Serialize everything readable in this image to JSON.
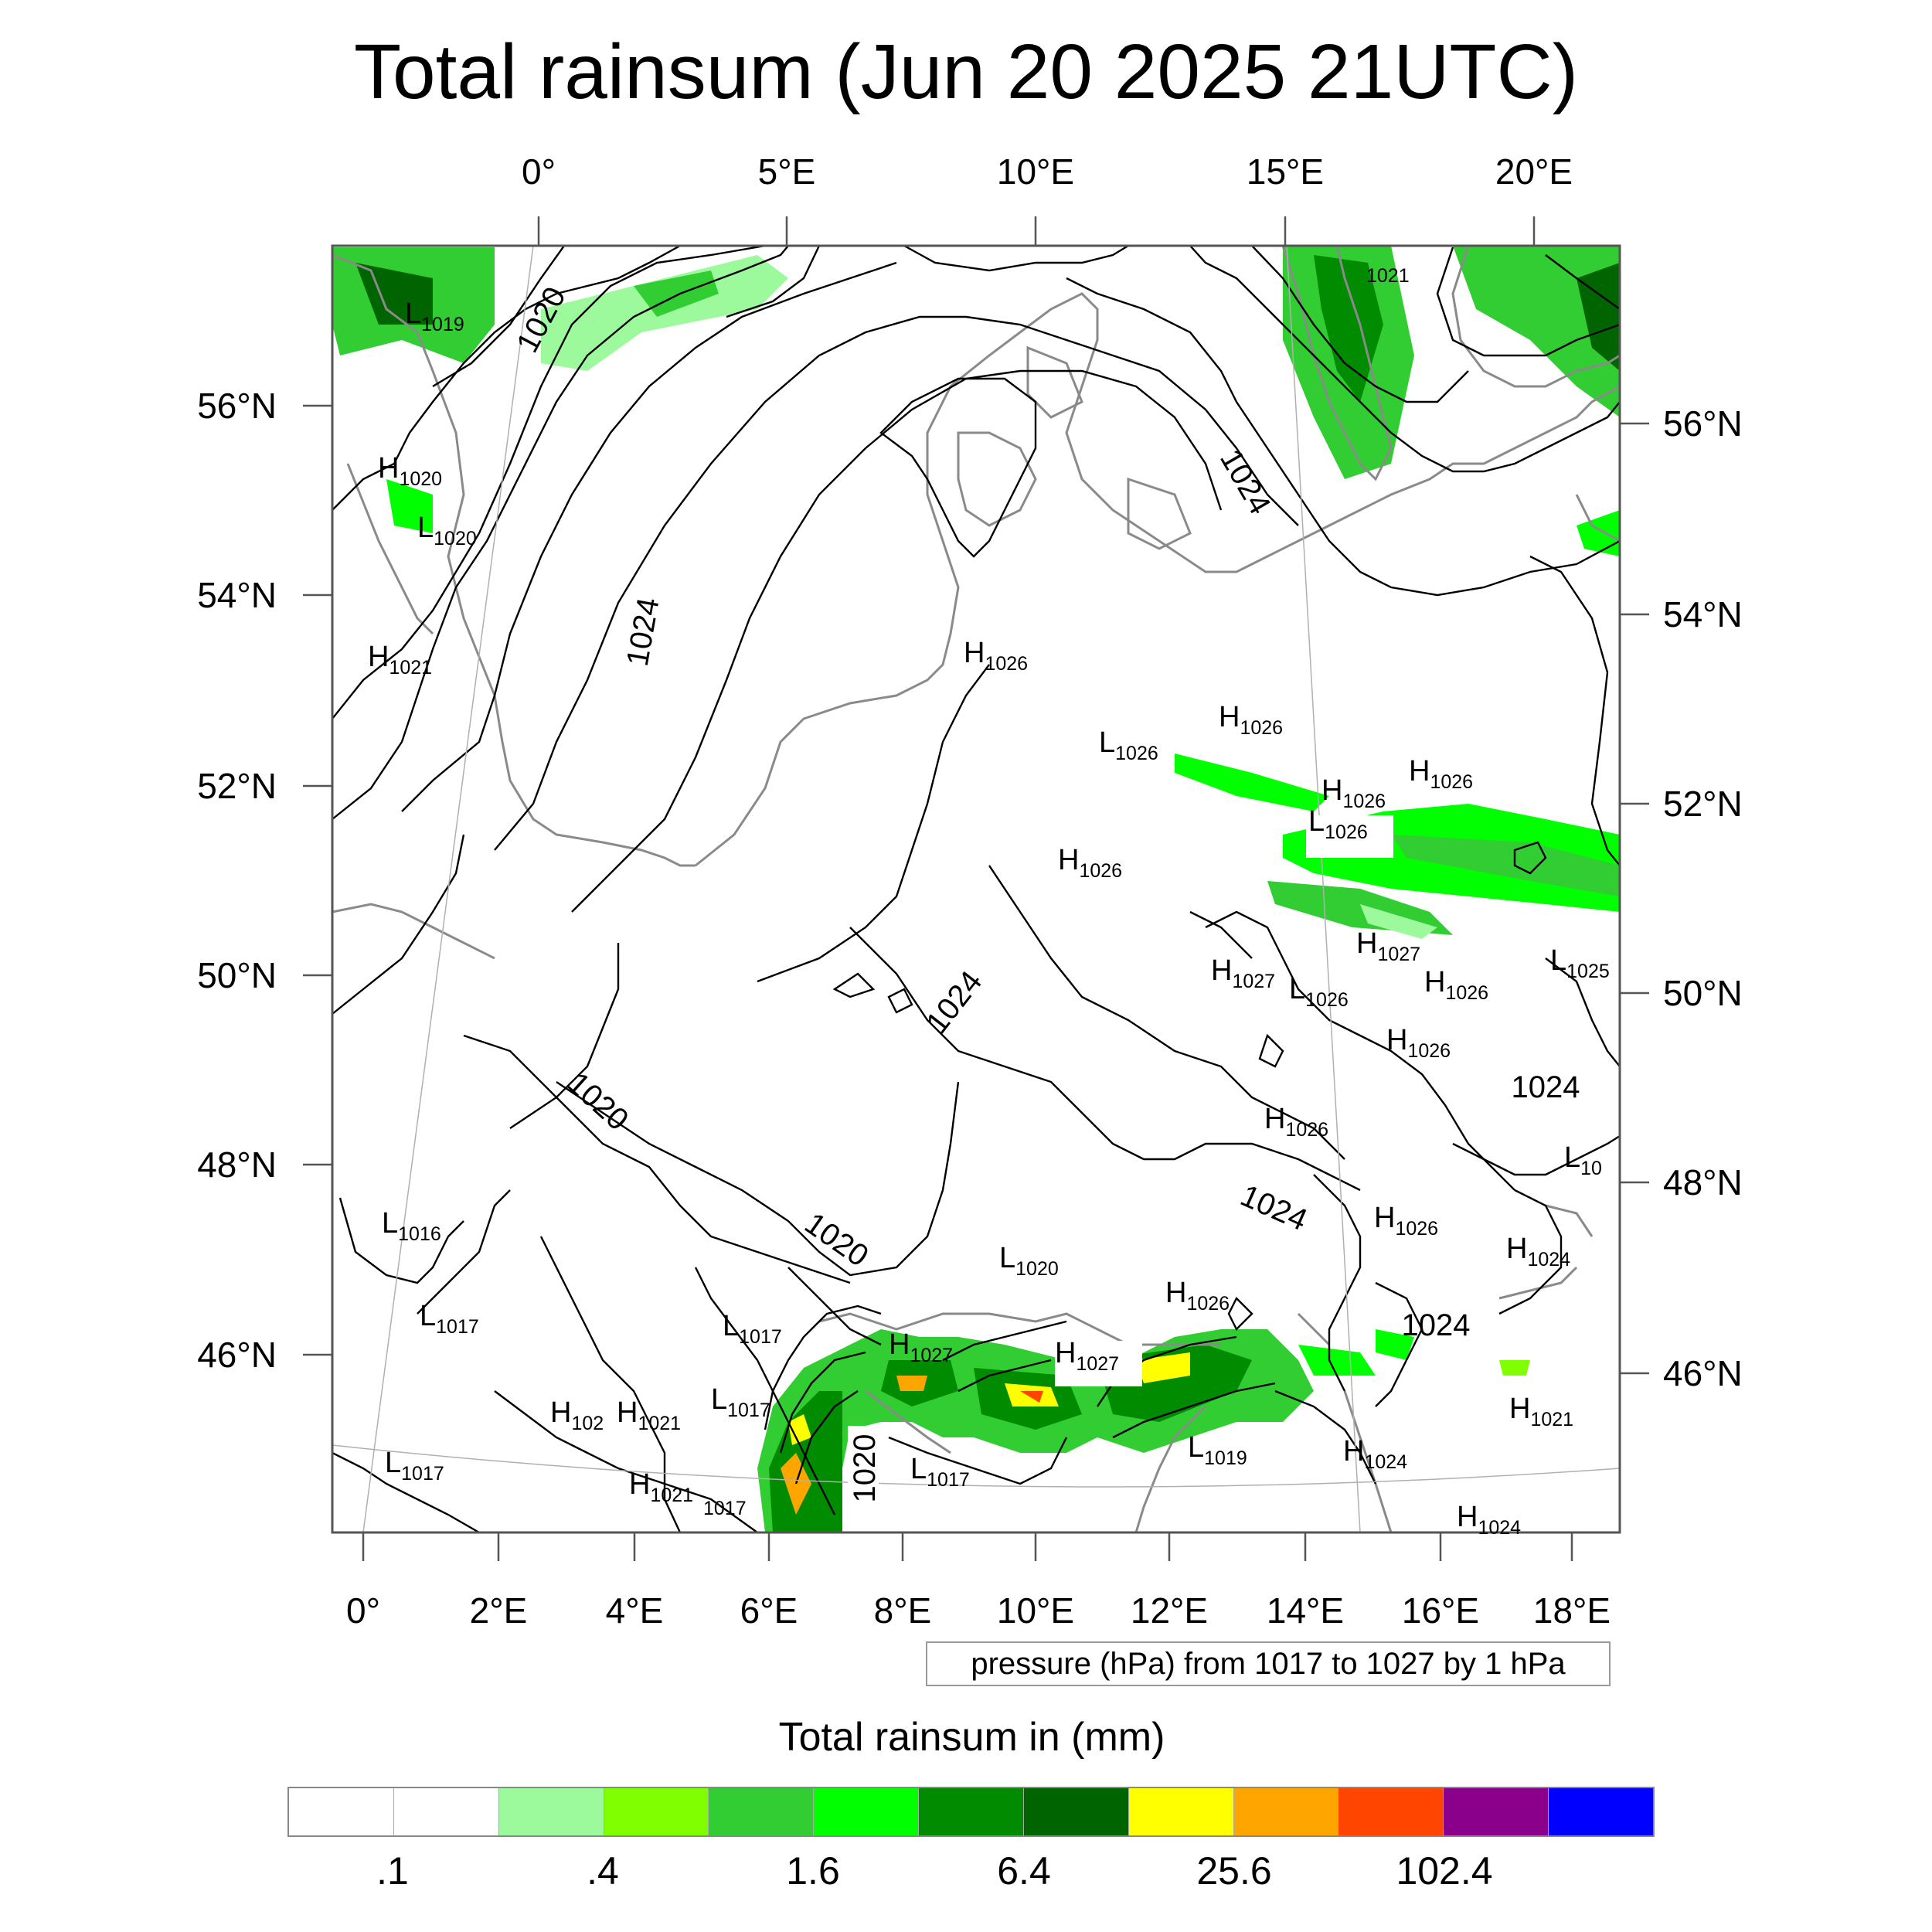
{
  "title": "Total rainsum (Jun 20 2025 21UTC)",
  "grid_labels": {
    "top": [
      "0°",
      "5°E",
      "10°E",
      "15°E",
      "20°E"
    ],
    "bottom": [
      "0°",
      "2°E",
      "4°E",
      "6°E",
      "8°E",
      "10°E",
      "12°E",
      "14°E",
      "16°E",
      "18°E"
    ],
    "left": [
      "56°N",
      "54°N",
      "52°N",
      "50°N",
      "48°N",
      "46°N"
    ],
    "right": [
      "56°N",
      "54°N",
      "52°N",
      "50°N",
      "48°N",
      "46°N"
    ]
  },
  "pressure_centers": [
    {
      "t": "L",
      "v": "1019"
    },
    {
      "t": "H",
      "v": "1020"
    },
    {
      "t": "L",
      "v": "1020"
    },
    {
      "t": "H",
      "v": "1021"
    },
    {
      "t": "H",
      "v": "1026"
    },
    {
      "t": "L",
      "v": "1026"
    },
    {
      "t": "H",
      "v": "1026"
    },
    {
      "t": "H",
      "v": "1026"
    },
    {
      "t": "H",
      "v": "1026"
    },
    {
      "t": "L",
      "v": "1026"
    },
    {
      "t": "H",
      "v": "1026"
    },
    {
      "t": "H",
      "v": "1027"
    },
    {
      "t": "H",
      "v": "1027"
    },
    {
      "t": "L",
      "v": "1026"
    },
    {
      "t": "H",
      "v": "1026"
    },
    {
      "t": "L",
      "v": "1025"
    },
    {
      "t": "H",
      "v": "1026"
    },
    {
      "t": "H",
      "v": "1026"
    },
    {
      "t": "L",
      "v": "10"
    },
    {
      "t": "L",
      "v": "1016"
    },
    {
      "t": "H",
      "v": "1026"
    },
    {
      "t": "H",
      "v": "1024"
    },
    {
      "t": "L",
      "v": "1020"
    },
    {
      "t": "H",
      "v": "1026"
    },
    {
      "t": "L",
      "v": "1017"
    },
    {
      "t": "L",
      "v": "1017"
    },
    {
      "t": "H",
      "v": "1027"
    },
    {
      "t": "H",
      "v": "1027"
    },
    {
      "t": "L",
      "v": "1017"
    },
    {
      "t": "H",
      "v": "102"
    },
    {
      "t": "H",
      "v": "1021"
    },
    {
      "t": "L",
      "v": "1017"
    },
    {
      "t": "H",
      "v": "1021"
    },
    {
      "t": "",
      "v": "1017"
    },
    {
      "t": "L",
      "v": "1017"
    },
    {
      "t": "L",
      "v": "1019"
    },
    {
      "t": "H",
      "v": "1024"
    },
    {
      "t": "H",
      "v": "1024"
    },
    {
      "t": "H",
      "v": "1021"
    },
    {
      "t": "",
      "v": "1021"
    }
  ],
  "contour_labels": [
    "1020",
    "1024",
    "1024",
    "1024",
    "1020",
    "1024",
    "1020",
    "1024",
    "1024",
    "1020"
  ],
  "pressure_note": "pressure (hPa) from 1017 to 1027 by 1 hPa",
  "colorbar": {
    "title": "Total rainsum in (mm)",
    "labels": [
      ".1",
      ".4",
      "1.6",
      "6.4",
      "25.6",
      "102.4"
    ],
    "colors": [
      "#ffffff",
      "#ffffff",
      "#9cfa9c",
      "#80ff00",
      "#32cd32",
      "#00ff00",
      "#008b00",
      "#006400",
      "#ffff00",
      "#ffa500",
      "#ff4500",
      "#8b008b",
      "#0000ff"
    ]
  }
}
